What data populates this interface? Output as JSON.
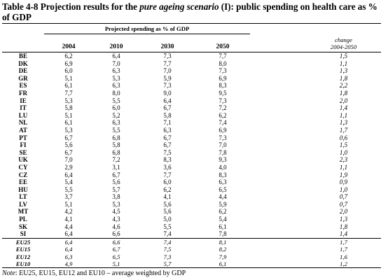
{
  "title": {
    "prefix": "Table 4-8 Projection results for the ",
    "italic": "pure ageing scenario",
    "suffix": " (I): public spending on health care as % of GDP"
  },
  "table": {
    "group_header": "Projected spending as % of GDP",
    "columns": [
      "2004",
      "2010",
      "2030",
      "2050"
    ],
    "change_header_line1": "change",
    "change_header_line2": "2004-2050",
    "rows": [
      {
        "c": "BE",
        "v": [
          "6,2",
          "6,4",
          "7,3",
          "7,7"
        ],
        "ch": "1,5"
      },
      {
        "c": "DK",
        "v": [
          "6,9",
          "7,0",
          "7,7",
          "8,0"
        ],
        "ch": "1,1"
      },
      {
        "c": "DE",
        "v": [
          "6,0",
          "6,3",
          "7,0",
          "7,3"
        ],
        "ch": "1,3"
      },
      {
        "c": "GR",
        "v": [
          "5,1",
          "5,3",
          "5,9",
          "6,9"
        ],
        "ch": "1,8"
      },
      {
        "c": "ES",
        "v": [
          "6,1",
          "6,3",
          "7,3",
          "8,3"
        ],
        "ch": "2,2"
      },
      {
        "c": "FR",
        "v": [
          "7,7",
          "8,0",
          "9,0",
          "9,5"
        ],
        "ch": "1,8"
      },
      {
        "c": "IE",
        "v": [
          "5,3",
          "5,5",
          "6,4",
          "7,3"
        ],
        "ch": "2,0"
      },
      {
        "c": "IT",
        "v": [
          "5,8",
          "6,0",
          "6,7",
          "7,2"
        ],
        "ch": "1,4"
      },
      {
        "c": "LU",
        "v": [
          "5,1",
          "5,2",
          "5,8",
          "6,2"
        ],
        "ch": "1,1"
      },
      {
        "c": "NL",
        "v": [
          "6,1",
          "6,3",
          "7,1",
          "7,4"
        ],
        "ch": "1,3"
      },
      {
        "c": "AT",
        "v": [
          "5,3",
          "5,5",
          "6,3",
          "6,9"
        ],
        "ch": "1,7"
      },
      {
        "c": "PT",
        "v": [
          "6,7",
          "6,8",
          "6,7",
          "7,3"
        ],
        "ch": "0,6"
      },
      {
        "c": "FI",
        "v": [
          "5,6",
          "5,8",
          "6,7",
          "7,0"
        ],
        "ch": "1,5"
      },
      {
        "c": "SE",
        "v": [
          "6,7",
          "6,8",
          "7,5",
          "7,8"
        ],
        "ch": "1,0"
      },
      {
        "c": "UK",
        "v": [
          "7,0",
          "7,2",
          "8,3",
          "9,3"
        ],
        "ch": "2,3"
      },
      {
        "c": "CY",
        "v": [
          "2,9",
          "3,1",
          "3,6",
          "4,0"
        ],
        "ch": "1,1"
      },
      {
        "c": "CZ",
        "v": [
          "6,4",
          "6,7",
          "7,7",
          "8,3"
        ],
        "ch": "1,9"
      },
      {
        "c": "EE",
        "v": [
          "5,4",
          "5,6",
          "6,0",
          "6,3"
        ],
        "ch": "0,9"
      },
      {
        "c": "HU",
        "v": [
          "5,5",
          "5,7",
          "6,2",
          "6,5"
        ],
        "ch": "1,0"
      },
      {
        "c": "LT",
        "v": [
          "3,7",
          "3,8",
          "4,1",
          "4,4"
        ],
        "ch": "0,7"
      },
      {
        "c": "LV",
        "v": [
          "5,1",
          "5,3",
          "5,6",
          "5,9"
        ],
        "ch": "0,7"
      },
      {
        "c": "MT",
        "v": [
          "4,2",
          "4,5",
          "5,6",
          "6,2"
        ],
        "ch": "2,0"
      },
      {
        "c": "PL",
        "v": [
          "4,1",
          "4,3",
          "5,0",
          "5,4"
        ],
        "ch": "1,3"
      },
      {
        "c": "SK",
        "v": [
          "4,4",
          "4,6",
          "5,5",
          "6,1"
        ],
        "ch": "1,8"
      },
      {
        "c": "SI",
        "v": [
          "6,4",
          "6,6",
          "7,4",
          "7,8"
        ],
        "ch": "1,4"
      }
    ],
    "aggregates": [
      {
        "c": "EU25",
        "v": [
          "6,4",
          "6,6",
          "7,4",
          "8,1"
        ],
        "ch": "1,7"
      },
      {
        "c": "EU15",
        "v": [
          "6,4",
          "6,7",
          "7,5",
          "8,2"
        ],
        "ch": "1,7"
      },
      {
        "c": "EU12",
        "v": [
          "6,3",
          "6,5",
          "7,3",
          "7,9"
        ],
        "ch": "1,6"
      },
      {
        "c": "EU10",
        "v": [
          "4,9",
          "5,1",
          "5,7",
          "6,1"
        ],
        "ch": "1,2"
      }
    ]
  },
  "note": {
    "label": "Note",
    "text": ": EU25, EU15, EU12 and EU10 – average weighted by GDP"
  }
}
